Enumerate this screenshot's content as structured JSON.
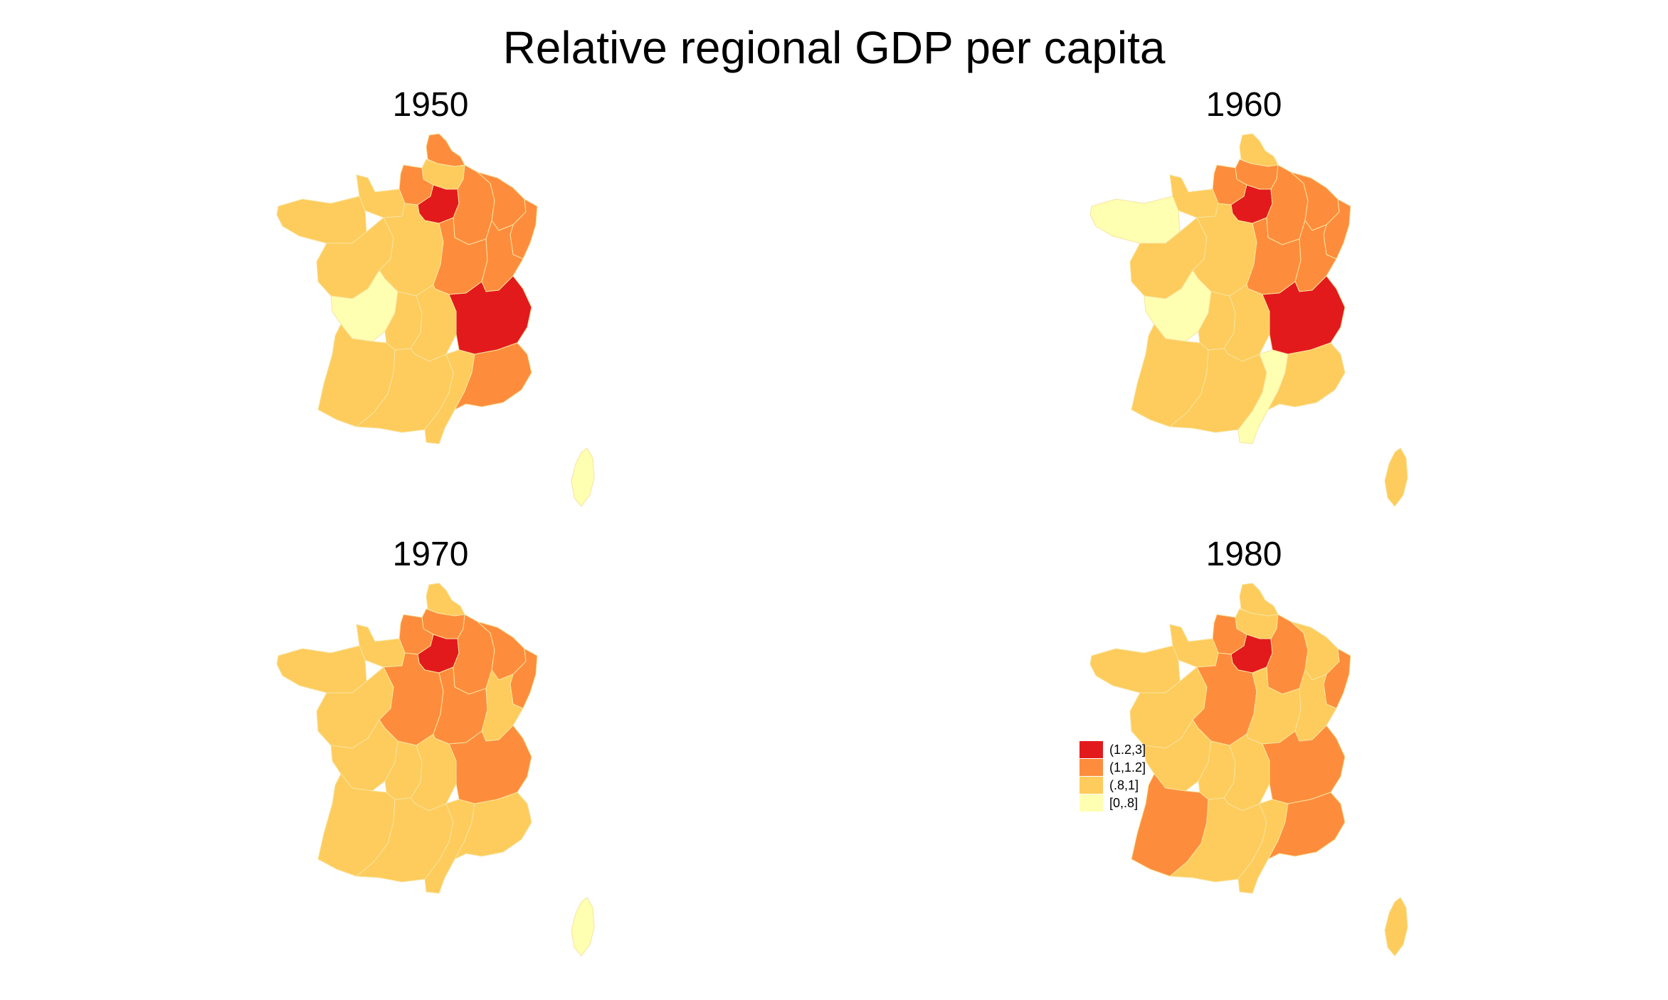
{
  "title": "Relative regional GDP per capita",
  "colors": {
    "c4": "#e31a1c",
    "c3": "#fd8d3c",
    "c2": "#fecc5c",
    "c1": "#ffffb2"
  },
  "legend": [
    {
      "label": "(1.2,3]",
      "class": "c4"
    },
    {
      "label": "(1,1.2]",
      "class": "c3"
    },
    {
      "label": "(.8,1]",
      "class": "c2"
    },
    {
      "label": "[0,.8]",
      "class": "c1"
    }
  ],
  "maps": [
    {
      "year": "1950",
      "regions": {
        "nord": "c3",
        "picardie": "c2",
        "haute_normandie": "c3",
        "basse_normandie": "c2",
        "bretagne": "c2",
        "idf": "c4",
        "champagne": "c3",
        "lorraine": "c3",
        "alsace": "c3",
        "pays_loire": "c2",
        "centre": "c2",
        "bourgogne": "c3",
        "franche_comte": "c3",
        "poitou": "c1",
        "limousin": "c2",
        "auvergne": "c2",
        "rhone_alpes": "c4",
        "aquitaine": "c2",
        "midi_pyrenees": "c2",
        "languedoc": "c2",
        "paca": "c3",
        "corse": "c1"
      }
    },
    {
      "year": "1960",
      "regions": {
        "nord": "c2",
        "picardie": "c3",
        "haute_normandie": "c3",
        "basse_normandie": "c2",
        "bretagne": "c1",
        "idf": "c4",
        "champagne": "c3",
        "lorraine": "c3",
        "alsace": "c3",
        "pays_loire": "c2",
        "centre": "c2",
        "bourgogne": "c3",
        "franche_comte": "c3",
        "poitou": "c1",
        "limousin": "c2",
        "auvergne": "c2",
        "rhone_alpes": "c4",
        "aquitaine": "c2",
        "midi_pyrenees": "c2",
        "languedoc": "c1",
        "paca": "c2",
        "corse": "c2"
      }
    },
    {
      "year": "1970",
      "regions": {
        "nord": "c2",
        "picardie": "c3",
        "haute_normandie": "c3",
        "basse_normandie": "c2",
        "bretagne": "c2",
        "idf": "c4",
        "champagne": "c3",
        "lorraine": "c3",
        "alsace": "c3",
        "pays_loire": "c2",
        "centre": "c3",
        "bourgogne": "c3",
        "franche_comte": "c2",
        "poitou": "c2",
        "limousin": "c2",
        "auvergne": "c2",
        "rhone_alpes": "c3",
        "aquitaine": "c2",
        "midi_pyrenees": "c2",
        "languedoc": "c2",
        "paca": "c2",
        "corse": "c1"
      }
    },
    {
      "year": "1980",
      "regions": {
        "nord": "c2",
        "picardie": "c2",
        "haute_normandie": "c3",
        "basse_normandie": "c2",
        "bretagne": "c2",
        "idf": "c4",
        "champagne": "c3",
        "lorraine": "c2",
        "alsace": "c3",
        "pays_loire": "c2",
        "centre": "c3",
        "bourgogne": "c2",
        "franche_comte": "c2",
        "poitou": "c2",
        "limousin": "c2",
        "auvergne": "c2",
        "rhone_alpes": "c3",
        "aquitaine": "c3",
        "midi_pyrenees": "c2",
        "languedoc": "c2",
        "paca": "c3",
        "corse": "c2"
      }
    }
  ]
}
